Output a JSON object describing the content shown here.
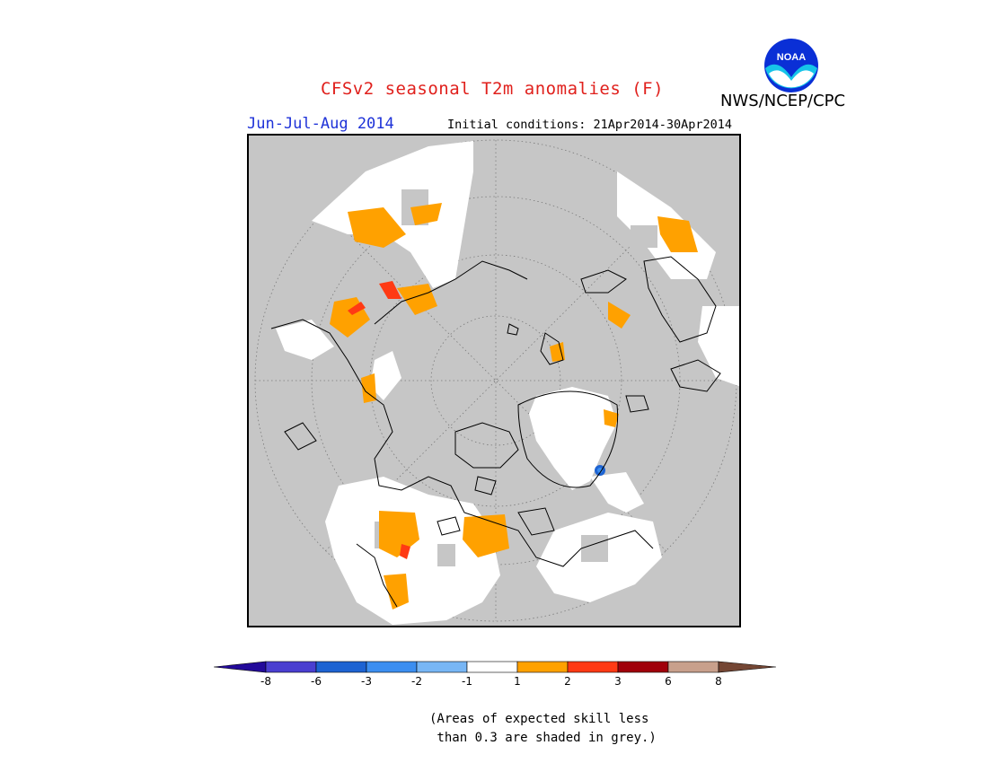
{
  "header": {
    "title": "CFSv2 seasonal T2m anomalies (F)",
    "period": "Jun-Jul-Aug 2014",
    "initial_conditions": "Initial conditions: 21Apr2014-30Apr2014",
    "agency": "NWS/NCEP/CPC",
    "logo_text": "NOAA"
  },
  "map": {
    "projection": "north-polar-stereographic",
    "background_color": "#c6c6c6",
    "land_outline_color": "#000000",
    "graticule": "dotted"
  },
  "colorbar": {
    "ticks": [
      "-8",
      "-6",
      "-3",
      "-2",
      "-1",
      "1",
      "2",
      "3",
      "6",
      "8"
    ],
    "colors": [
      "#230a9a",
      "#4a3fd0",
      "#1d63d2",
      "#3c8ef0",
      "#78b6f5",
      "#ffffff",
      "#ffa100",
      "#ff3a14",
      "#a0000a",
      "#c8a08c",
      "#744634"
    ]
  },
  "note": {
    "line1": "(Areas of expected skill less",
    "line2": " than 0.3 are shaded in grey.)"
  }
}
